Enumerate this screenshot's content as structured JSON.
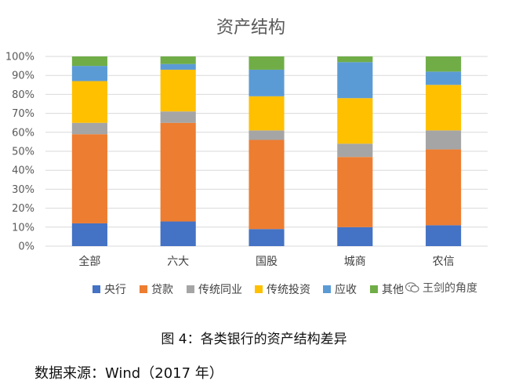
{
  "chart_data": {
    "type": "bar",
    "stacked": true,
    "title": "资产结构",
    "categories": [
      "全部",
      "六大",
      "国股",
      "城商",
      "农信"
    ],
    "ylim": [
      0,
      100
    ],
    "yticks": [
      "0%",
      "10%",
      "20%",
      "30%",
      "40%",
      "50%",
      "60%",
      "70%",
      "80%",
      "90%",
      "100%"
    ],
    "grid": true,
    "legend_position": "bottom",
    "series": [
      {
        "name": "央行",
        "color": "#4472C4",
        "values": [
          12,
          13,
          9,
          10,
          11
        ]
      },
      {
        "name": "贷款",
        "color": "#ED7D31",
        "values": [
          47,
          52,
          47,
          37,
          40
        ]
      },
      {
        "name": "传统同业",
        "color": "#A5A5A5",
        "values": [
          6,
          6,
          5,
          7,
          10
        ]
      },
      {
        "name": "传统投资",
        "color": "#FFC000",
        "values": [
          22,
          22,
          18,
          24,
          24
        ]
      },
      {
        "name": "应收",
        "color": "#5B9BD5",
        "values": [
          8,
          3,
          14,
          19,
          7
        ]
      },
      {
        "name": "其他",
        "color": "#70AD47",
        "values": [
          5,
          4,
          7,
          3,
          8
        ]
      }
    ]
  },
  "watermark": {
    "text": "王剑的角度",
    "icon": "wechat-icon"
  },
  "caption": "图 4：各类银行的资产结构差异",
  "source": "数据来源：Wind（2017 年）"
}
